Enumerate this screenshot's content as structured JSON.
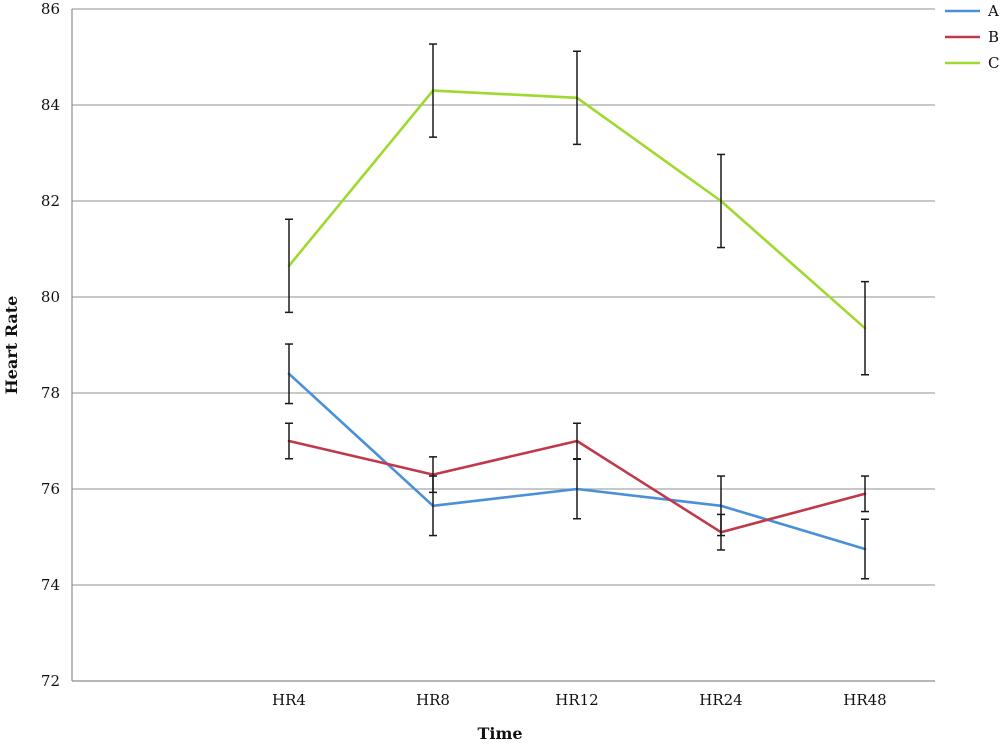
{
  "chart_data": {
    "type": "line",
    "title": "",
    "xlabel": "Time",
    "ylabel": "Heart Rate",
    "categories": [
      "HR4",
      "HR8",
      "HR12",
      "HR24",
      "HR48"
    ],
    "ylim": [
      72,
      86
    ],
    "yticks": [
      72,
      74,
      76,
      78,
      80,
      82,
      84,
      86
    ],
    "grid": true,
    "legend_position": "top-right",
    "error_bars": true,
    "series": [
      {
        "name": "A",
        "color": "#4a90d9",
        "values": [
          78.4,
          75.65,
          76.0,
          75.65,
          74.75
        ],
        "errors": [
          0.62,
          0.62,
          0.62,
          0.62,
          0.62
        ]
      },
      {
        "name": "B",
        "color": "#c0394b",
        "values": [
          77.0,
          76.3,
          77.0,
          75.1,
          75.9
        ],
        "errors": [
          0.37,
          0.37,
          0.37,
          0.37,
          0.37
        ]
      },
      {
        "name": "C",
        "color": "#9fd92e",
        "values": [
          80.65,
          84.3,
          84.15,
          82.0,
          79.35
        ],
        "errors": [
          0.97,
          0.97,
          0.97,
          0.97,
          0.97
        ]
      }
    ]
  }
}
